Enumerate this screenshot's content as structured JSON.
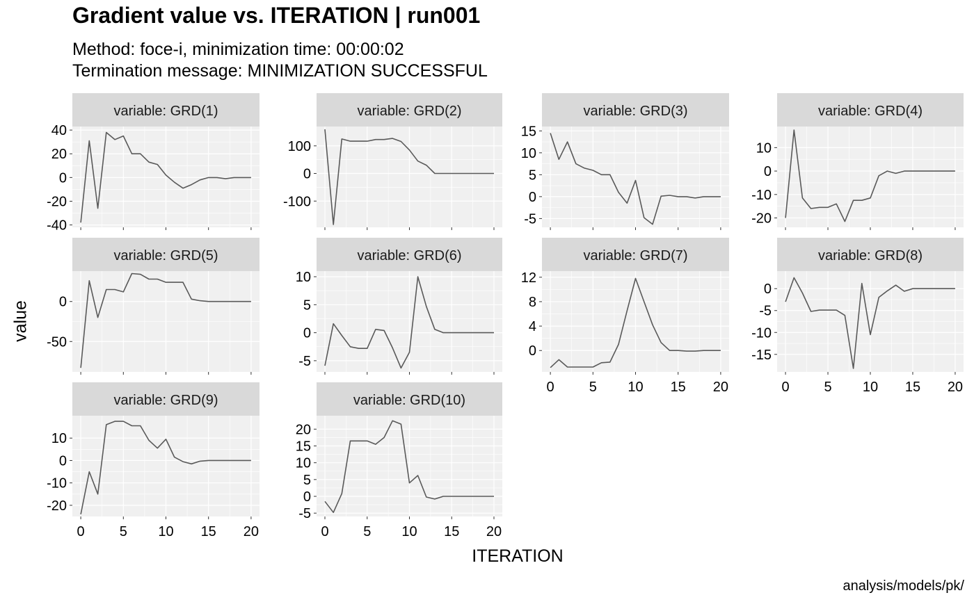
{
  "header": {
    "title": "Gradient value vs. ITERATION | run001",
    "subtitle_line1": "Method: foce-i, minimization time: 00:00:02",
    "subtitle_line2": "Termination message: MINIMIZATION SUCCESSFUL"
  },
  "caption": "analysis/models/pk/",
  "chart_data": {
    "type": "line",
    "facet_label_prefix": "variable: ",
    "xlabel": "ITERATION",
    "ylabel": "value",
    "xlim": [
      0,
      20
    ],
    "x_ticks": [
      0,
      5,
      10,
      15,
      20
    ],
    "grid": true,
    "line_color": "#595959",
    "panel_background": "#f0f0f0",
    "strip_background": "#d9d9d9",
    "x": [
      0,
      1,
      2,
      3,
      4,
      5,
      6,
      7,
      8,
      9,
      10,
      11,
      12,
      13,
      14,
      15,
      16,
      17,
      18,
      19,
      20
    ],
    "series": [
      {
        "name": "GRD(1)",
        "ylim": [
          -42,
          43
        ],
        "y_ticks": [
          -40,
          -20,
          0,
          20,
          40
        ],
        "values": [
          -38,
          31,
          -26,
          38,
          32,
          35,
          20,
          20,
          13,
          11,
          2,
          -4,
          -9,
          -6,
          -2,
          0,
          0,
          -1,
          0,
          0,
          0
        ]
      },
      {
        "name": "GRD(2)",
        "ylim": [
          -195,
          170
        ],
        "y_ticks": [
          -100,
          0,
          100
        ],
        "values": [
          160,
          -185,
          125,
          117,
          117,
          117,
          123,
          123,
          127,
          116,
          85,
          45,
          30,
          0,
          0,
          0,
          0,
          0,
          0,
          0,
          0
        ]
      },
      {
        "name": "GRD(3)",
        "ylim": [
          -7,
          16
        ],
        "y_ticks": [
          -5,
          0,
          5,
          10,
          15
        ],
        "values": [
          14.5,
          8.5,
          12.5,
          7.5,
          6.5,
          6,
          5,
          5,
          1,
          -1.5,
          3.7,
          -4.8,
          -6.3,
          0.1,
          0.3,
          0,
          0,
          -0.3,
          0,
          0,
          0
        ]
      },
      {
        "name": "GRD(4)",
        "ylim": [
          -24,
          19
        ],
        "y_ticks": [
          -20,
          -10,
          0,
          10
        ],
        "values": [
          -20,
          17.5,
          -11.5,
          -16,
          -15.5,
          -15.5,
          -14,
          -21.5,
          -12.5,
          -12.5,
          -11.5,
          -2,
          0,
          -1,
          0,
          0,
          0,
          0,
          0,
          0,
          0
        ]
      },
      {
        "name": "GRD(5)",
        "ylim": [
          -88,
          38
        ],
        "y_ticks": [
          -50,
          0
        ],
        "values": [
          -83,
          26,
          -20,
          15,
          15,
          12,
          35,
          34,
          28,
          28,
          24,
          24,
          24,
          3,
          1,
          0,
          0,
          0,
          0,
          0,
          0
        ]
      },
      {
        "name": "GRD(6)",
        "ylim": [
          -7,
          11
        ],
        "y_ticks": [
          -5,
          0,
          5,
          10
        ],
        "values": [
          -5.9,
          1.6,
          -0.5,
          -2.5,
          -2.8,
          -2.8,
          0.6,
          0.4,
          -2.7,
          -6.3,
          -3.5,
          10,
          4.7,
          0.6,
          0,
          0,
          0,
          0,
          0,
          0,
          0
        ]
      },
      {
        "name": "GRD(7)",
        "ylim": [
          -3.5,
          13
        ],
        "y_ticks": [
          0,
          4,
          8,
          12
        ],
        "values": [
          -2.8,
          -1.5,
          -2.7,
          -2.7,
          -2.7,
          -2.7,
          -2,
          -1.9,
          1,
          6.5,
          11.8,
          8,
          4.2,
          1.3,
          0,
          0,
          -0.1,
          -0.1,
          0,
          0,
          0
        ]
      },
      {
        "name": "GRD(8)",
        "ylim": [
          -19,
          4
        ],
        "y_ticks": [
          -15,
          -10,
          -5,
          0
        ],
        "values": [
          -3,
          2.5,
          -1,
          -5.2,
          -4.9,
          -4.9,
          -4.9,
          -6.1,
          -18.2,
          1.2,
          -10.5,
          -2,
          -0.5,
          0.8,
          -0.6,
          0,
          0,
          0,
          0,
          0,
          0
        ]
      },
      {
        "name": "GRD(9)",
        "ylim": [
          -25,
          20
        ],
        "y_ticks": [
          -20,
          -10,
          0,
          10
        ],
        "values": [
          -24,
          -5,
          -15,
          16,
          17.5,
          17.5,
          15.5,
          15.5,
          9,
          5.5,
          9.5,
          1.5,
          -0.5,
          -1.5,
          -0.3,
          0,
          0,
          0,
          0,
          0,
          0
        ]
      },
      {
        "name": "GRD(10)",
        "ylim": [
          -6,
          24
        ],
        "y_ticks": [
          -5,
          0,
          5,
          10,
          15,
          20
        ],
        "values": [
          -1.5,
          -4.8,
          0.8,
          16.5,
          16.5,
          16.5,
          15.5,
          17.5,
          22.5,
          21.5,
          4,
          6.2,
          -0.2,
          -0.8,
          0,
          0,
          0,
          0,
          0,
          0,
          0
        ]
      }
    ]
  }
}
